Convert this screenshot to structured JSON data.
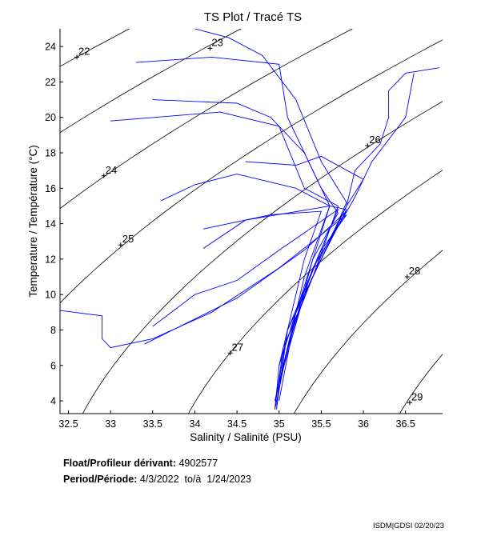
{
  "chart_data": {
    "type": "line",
    "title": "TS Plot / Tracé TS",
    "xlabel": "Salinity / Salinité (PSU)",
    "ylabel": "Temperature / Température (°C)",
    "xlim": [
      32.4,
      36.94
    ],
    "ylim": [
      3.28,
      25
    ],
    "xticks": [
      "32.5",
      "33",
      "33.5",
      "34",
      "34.5",
      "35",
      "35.5",
      "36",
      "36.5"
    ],
    "yticks": [
      "4",
      "6",
      "8",
      "10",
      "12",
      "14",
      "16",
      "18",
      "20",
      "22",
      "24"
    ],
    "grid": false,
    "series_color": "#0000ff",
    "density_contours": [
      {
        "level": 22,
        "label": "22",
        "label_at": [
          32.6,
          23.4
        ]
      },
      {
        "level": 23,
        "label": "23",
        "label_at": [
          34.18,
          23.9
        ]
      },
      {
        "level": 24,
        "label": "24",
        "label_at": [
          32.92,
          16.7
        ]
      },
      {
        "level": 25,
        "label": "25",
        "label_at": [
          33.12,
          12.8
        ]
      },
      {
        "level": 26,
        "label": "26",
        "label_at": [
          36.05,
          18.4
        ]
      },
      {
        "level": 27,
        "label": "27",
        "label_at": [
          34.42,
          6.7
        ]
      },
      {
        "level": 28,
        "label": "28",
        "label_at": [
          36.52,
          11.0
        ]
      },
      {
        "level": 29,
        "label": "29",
        "label_at": [
          36.55,
          3.9
        ]
      }
    ],
    "profiles": [
      [
        [
          33.3,
          23.1
        ],
        [
          34.2,
          23.4
        ],
        [
          35.0,
          23.0
        ],
        [
          35.1,
          20
        ],
        [
          35.4,
          17
        ],
        [
          35.6,
          15
        ],
        [
          35.8,
          14.8
        ],
        [
          35.5,
          12
        ],
        [
          35.2,
          9
        ],
        [
          35.0,
          6
        ],
        [
          34.95,
          3.5
        ]
      ],
      [
        [
          33.0,
          19.8
        ],
        [
          34.3,
          20.3
        ],
        [
          35.0,
          19.5
        ],
        [
          35.3,
          16
        ],
        [
          35.7,
          15
        ],
        [
          35.4,
          11
        ],
        [
          35.05,
          7
        ],
        [
          34.95,
          3.6
        ]
      ],
      [
        [
          34.0,
          25
        ],
        [
          34.4,
          24.5
        ],
        [
          34.8,
          23.5
        ],
        [
          35.2,
          21
        ],
        [
          35.5,
          17.5
        ],
        [
          35.8,
          15.2
        ],
        [
          35.6,
          13
        ],
        [
          35.3,
          10
        ],
        [
          35.0,
          5
        ],
        [
          34.97,
          3.5
        ]
      ],
      [
        [
          32.4,
          9.1
        ],
        [
          32.9,
          8.8
        ],
        [
          32.9,
          7.5
        ],
        [
          33.0,
          7.0
        ],
        [
          33.5,
          7.5
        ],
        [
          34.2,
          9
        ],
        [
          35.0,
          11.5
        ],
        [
          35.8,
          14.5
        ],
        [
          35.5,
          12.5
        ],
        [
          35.2,
          9
        ],
        [
          35.0,
          4
        ]
      ],
      [
        [
          33.4,
          7.2
        ],
        [
          34.5,
          9.8
        ],
        [
          35.3,
          12.5
        ],
        [
          35.8,
          14.7
        ],
        [
          35.4,
          11.5
        ],
        [
          35.1,
          7
        ],
        [
          34.96,
          3.7
        ]
      ],
      [
        [
          33.5,
          8.2
        ],
        [
          34.0,
          10
        ],
        [
          34.5,
          10.8
        ],
        [
          35.0,
          12.5
        ],
        [
          35.7,
          14.8
        ],
        [
          35.45,
          12
        ],
        [
          35.1,
          8
        ],
        [
          34.96,
          4
        ]
      ],
      [
        [
          34.1,
          12.6
        ],
        [
          34.6,
          14.2
        ],
        [
          35.1,
          14.6
        ],
        [
          35.6,
          15
        ],
        [
          35.3,
          11
        ],
        [
          35.0,
          5
        ]
      ],
      [
        [
          36.9,
          22.8
        ],
        [
          36.5,
          22.5
        ],
        [
          36.3,
          21.5
        ],
        [
          36.3,
          20
        ],
        [
          36.2,
          18.5
        ],
        [
          35.9,
          17
        ],
        [
          35.8,
          15
        ],
        [
          35.5,
          12
        ],
        [
          35.1,
          8
        ],
        [
          34.97,
          3.6
        ]
      ],
      [
        [
          36.6,
          22.5
        ],
        [
          36.5,
          20
        ],
        [
          36.1,
          17.5
        ],
        [
          35.9,
          15.5
        ],
        [
          35.6,
          13
        ],
        [
          35.2,
          9
        ],
        [
          34.95,
          4
        ]
      ],
      [
        [
          33.6,
          15.3
        ],
        [
          34.0,
          16.2
        ],
        [
          34.5,
          16.8
        ],
        [
          35.2,
          16
        ],
        [
          35.6,
          15
        ],
        [
          35.4,
          12
        ],
        [
          35.0,
          6
        ]
      ],
      [
        [
          33.5,
          21
        ],
        [
          34.5,
          20.8
        ],
        [
          34.9,
          20
        ],
        [
          35.3,
          18
        ],
        [
          35.5,
          16
        ],
        [
          35.7,
          14.6
        ],
        [
          35.4,
          12
        ],
        [
          35.05,
          6
        ]
      ],
      [
        [
          34.6,
          17.5
        ],
        [
          35.2,
          17.3
        ],
        [
          35.5,
          17.8
        ],
        [
          36.0,
          16.5
        ],
        [
          35.8,
          15
        ],
        [
          35.5,
          12.2
        ],
        [
          35.15,
          8
        ],
        [
          34.95,
          4
        ]
      ],
      [
        [
          34.1,
          13.7
        ],
        [
          34.9,
          14.5
        ],
        [
          35.5,
          14.7
        ],
        [
          35.3,
          12
        ],
        [
          35.0,
          6
        ]
      ]
    ]
  },
  "info": {
    "float_label": "Float/Profileur dérivant:",
    "float_id": "4902577",
    "period_label": "Period/Période:",
    "period_value": "4/3/2022  to/à  1/24/2023"
  },
  "credit": "ISDM|GDSI 02/20/23"
}
